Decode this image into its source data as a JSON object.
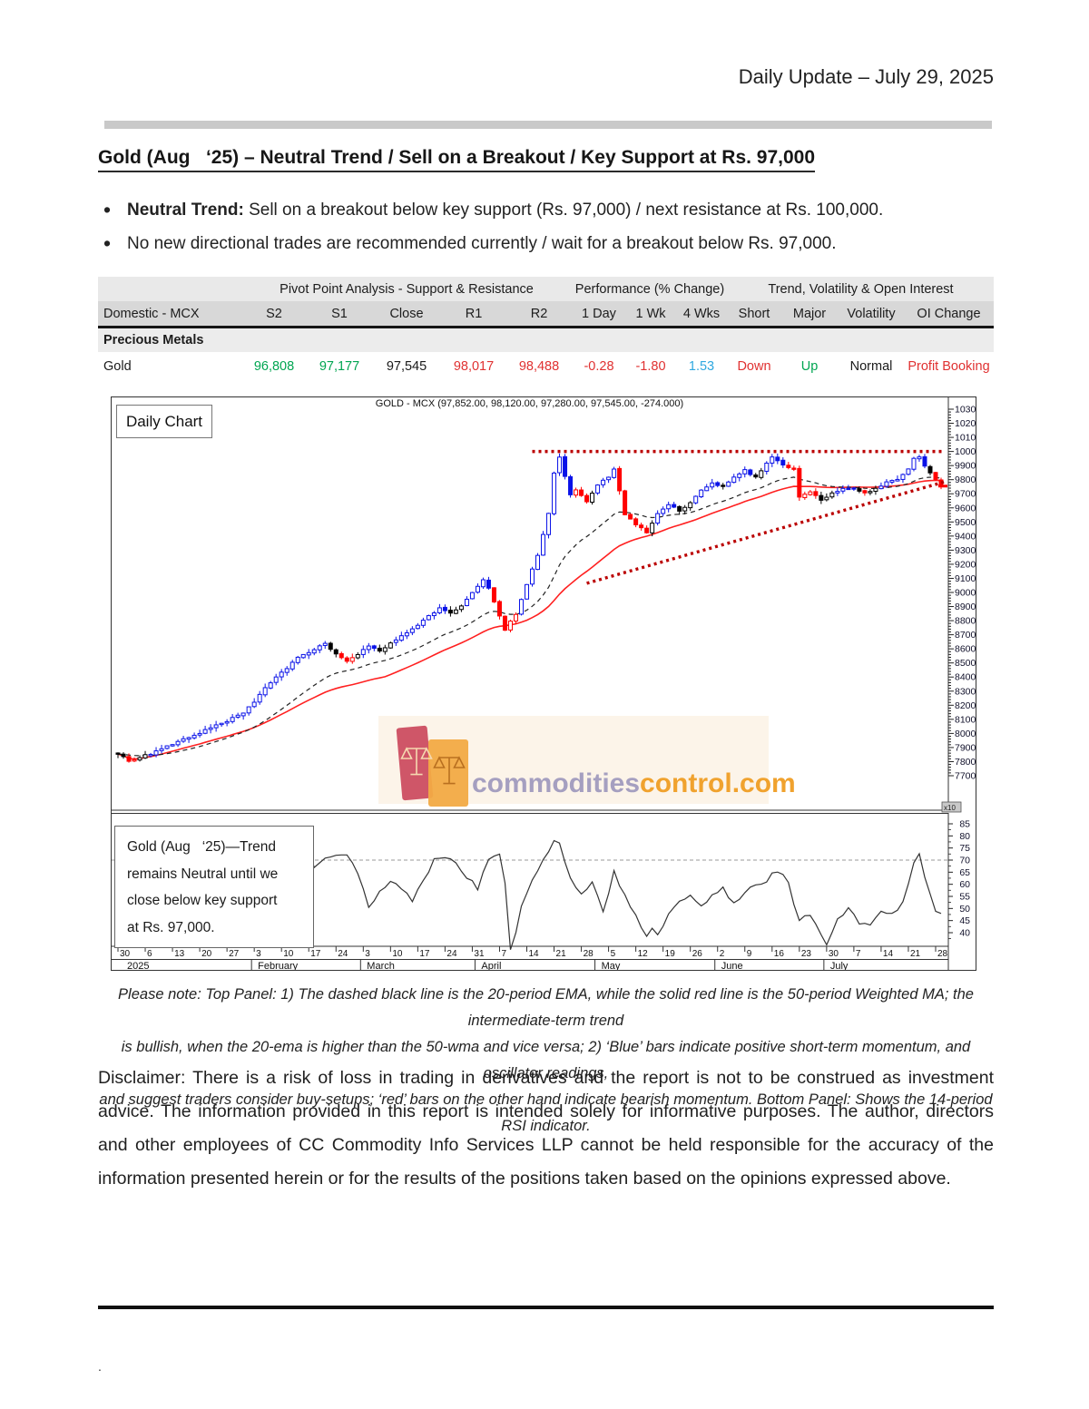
{
  "page": {
    "header_right": "Daily Update – July 29, 2025",
    "title": "Gold (Aug   ‘25) – Neutral Trend / Sell on a Breakout / Key Support at Rs. 97,000",
    "bullets": [
      {
        "lead": "Neutral Trend:",
        "text": " Sell on a breakout below key support (Rs. 97,000) / next resistance at Rs. 100,000."
      },
      {
        "lead": "",
        "text": "No new directional trades are recommended currently / wait for a breakout below Rs. 97,000."
      }
    ],
    "footnote_lines": [
      "Please note: Top Panel: 1) The dashed black line is the 20-period EMA, while the solid red line is the 50-period Weighted MA; the intermediate-term trend",
      "is bullish, when the 20-ema is higher than the 50-wma and vice versa; 2) ‘Blue’  bars indicate positive short-term momentum, and oscillator readings,",
      "and suggest traders consider buy-setups;  ‘red’  bars on the other hand indicate bearish momentum. Bottom Panel: Shows the 14-period RSI indicator."
    ],
    "disclaimer": "Disclaimer: There is a risk of loss in trading in derivatives and the report is not to be construed as investment advice. The information provided in this report is intended solely for informative purposes. The author, directors and other employees of CC Commodity Info Services LLP cannot be held responsible for the accuracy of the information presented herein or for the results of the positions taken based on the opinions expressed above.",
    "trailing_mark": "."
  },
  "table": {
    "group_headers": [
      "",
      "Pivot Point Analysis - Support & Resistance",
      "Performance (% Change)",
      "Trend, Volatility & Open Interest"
    ],
    "columns": [
      "Domestic - MCX",
      "S2",
      "S1",
      "Close",
      "R1",
      "R2",
      "1 Day",
      "1 Wk",
      "4 Wks",
      "Short",
      "Major",
      "Volatility",
      "OI Change"
    ],
    "section_row": "Precious Metals",
    "rows": [
      {
        "cells": [
          "Gold",
          "96,808",
          "97,177",
          "97,545",
          "98,017",
          "98,488",
          "-0.28",
          "-1.80",
          "1.53",
          "Down",
          "Up",
          "Normal",
          "Profit Booking"
        ],
        "colors": [
          "black",
          "green",
          "green",
          "black",
          "red",
          "red",
          "red",
          "red",
          "blue",
          "red",
          "green",
          "black",
          "red"
        ]
      }
    ]
  },
  "chart_data": {
    "type": "candlestick",
    "title": "GOLD - MCX (97,852.00, 98,120.00, 97,280.00, 97,545.00, -274.000)",
    "panel_label": "Daily Chart",
    "annotation": "Gold (Aug   ‘25)—Trend\nremains Neutral until we\nclose below key support\nat Rs. 97,000.",
    "watermark": {
      "gray_text": "commodities",
      "orange_text": "control.com"
    },
    "scale_tag": "x10",
    "y_axis": {
      "min": 7700,
      "max": 10300,
      "step": 100
    },
    "rsi_axis": {
      "min": 40,
      "max": 85,
      "step": 5,
      "overbought_line": 70
    },
    "days_total": 152,
    "last_close": 9754.5,
    "price_keyframes": [
      [
        0,
        7860
      ],
      [
        2,
        7806
      ],
      [
        4,
        7830
      ],
      [
        6,
        7856
      ],
      [
        9,
        7906
      ],
      [
        12,
        7956
      ],
      [
        15,
        8006
      ],
      [
        18,
        8056
      ],
      [
        20,
        8086
      ],
      [
        23,
        8148
      ],
      [
        25,
        8220
      ],
      [
        27,
        8320
      ],
      [
        29,
        8396
      ],
      [
        31,
        8460
      ],
      [
        33,
        8540
      ],
      [
        36,
        8600
      ],
      [
        38,
        8636
      ],
      [
        40,
        8560
      ],
      [
        42,
        8506
      ],
      [
        44,
        8560
      ],
      [
        46,
        8620
      ],
      [
        48,
        8586
      ],
      [
        51,
        8660
      ],
      [
        54,
        8740
      ],
      [
        57,
        8830
      ],
      [
        59,
        8886
      ],
      [
        61,
        8856
      ],
      [
        63,
        8910
      ],
      [
        65,
        9000
      ],
      [
        67,
        9090
      ],
      [
        68,
        9030
      ],
      [
        69,
        8930
      ],
      [
        71,
        8730
      ],
      [
        73,
        8850
      ],
      [
        75,
        9060
      ],
      [
        77,
        9260
      ],
      [
        79,
        9560
      ],
      [
        80,
        9850
      ],
      [
        81,
        9956
      ],
      [
        82,
        9820
      ],
      [
        83,
        9690
      ],
      [
        84,
        9730
      ],
      [
        86,
        9640
      ],
      [
        88,
        9760
      ],
      [
        90,
        9820
      ],
      [
        91,
        9876
      ],
      [
        93,
        9556
      ],
      [
        95,
        9480
      ],
      [
        97,
        9426
      ],
      [
        99,
        9556
      ],
      [
        101,
        9620
      ],
      [
        103,
        9580
      ],
      [
        105,
        9640
      ],
      [
        107,
        9720
      ],
      [
        109,
        9770
      ],
      [
        111,
        9750
      ],
      [
        113,
        9820
      ],
      [
        115,
        9866
      ],
      [
        117,
        9820
      ],
      [
        119,
        9920
      ],
      [
        120,
        9956
      ],
      [
        122,
        9900
      ],
      [
        124,
        9876
      ],
      [
        125,
        9680
      ],
      [
        127,
        9720
      ],
      [
        129,
        9650
      ],
      [
        131,
        9700
      ],
      [
        133,
        9740
      ],
      [
        135,
        9730
      ],
      [
        137,
        9700
      ],
      [
        139,
        9740
      ],
      [
        141,
        9780
      ],
      [
        143,
        9800
      ],
      [
        145,
        9870
      ],
      [
        146,
        9950
      ],
      [
        147,
        9966
      ],
      [
        148,
        9890
      ],
      [
        149,
        9850
      ],
      [
        150,
        9800
      ],
      [
        151,
        9754.5
      ]
    ],
    "rsi_keyframes": [
      [
        34,
        83
      ],
      [
        36,
        68
      ],
      [
        38,
        72
      ],
      [
        40,
        73
      ],
      [
        42,
        72
      ],
      [
        44,
        64
      ],
      [
        46,
        51
      ],
      [
        48,
        57
      ],
      [
        50,
        61
      ],
      [
        52,
        59
      ],
      [
        54,
        53
      ],
      [
        56,
        62
      ],
      [
        58,
        70
      ],
      [
        60,
        72
      ],
      [
        62,
        70
      ],
      [
        64,
        63
      ],
      [
        66,
        58
      ],
      [
        68,
        71
      ],
      [
        70,
        73
      ],
      [
        71,
        60
      ],
      [
        72,
        34
      ],
      [
        73,
        40
      ],
      [
        74,
        52
      ],
      [
        76,
        62
      ],
      [
        78,
        71
      ],
      [
        80,
        77
      ],
      [
        81,
        78
      ],
      [
        83,
        62
      ],
      [
        85,
        57
      ],
      [
        87,
        60
      ],
      [
        89,
        48
      ],
      [
        91,
        66
      ],
      [
        93,
        55
      ],
      [
        95,
        48
      ],
      [
        97,
        38
      ],
      [
        98,
        41
      ],
      [
        99,
        38
      ],
      [
        101,
        48
      ],
      [
        103,
        52
      ],
      [
        105,
        55
      ],
      [
        107,
        50
      ],
      [
        109,
        55
      ],
      [
        111,
        58
      ],
      [
        113,
        52
      ],
      [
        115,
        57
      ],
      [
        117,
        60
      ],
      [
        119,
        62
      ],
      [
        121,
        66
      ],
      [
        123,
        60
      ],
      [
        125,
        44
      ],
      [
        127,
        48
      ],
      [
        129,
        40
      ],
      [
        130,
        35
      ],
      [
        132,
        46
      ],
      [
        134,
        50
      ],
      [
        136,
        44
      ],
      [
        138,
        42
      ],
      [
        140,
        50
      ],
      [
        142,
        48
      ],
      [
        144,
        52
      ],
      [
        146,
        68
      ],
      [
        147,
        72
      ],
      [
        148,
        62
      ],
      [
        149,
        55
      ],
      [
        150,
        50
      ],
      [
        151,
        47
      ]
    ],
    "rsi_visible_from_day": 34,
    "x_ticks": [
      [
        0,
        "30"
      ],
      [
        5,
        "6"
      ],
      [
        10,
        "13"
      ],
      [
        15,
        "20"
      ],
      [
        20,
        "27"
      ],
      [
        25,
        "3"
      ],
      [
        30,
        "10"
      ],
      [
        35,
        "17"
      ],
      [
        40,
        "24"
      ],
      [
        45,
        "3"
      ],
      [
        50,
        "10"
      ],
      [
        55,
        "17"
      ],
      [
        60,
        "24"
      ],
      [
        65,
        "31"
      ],
      [
        70,
        "7"
      ],
      [
        75,
        "14"
      ],
      [
        80,
        "21"
      ],
      [
        85,
        "28"
      ],
      [
        90,
        "5"
      ],
      [
        95,
        "12"
      ],
      [
        100,
        "19"
      ],
      [
        105,
        "26"
      ],
      [
        110,
        "2"
      ],
      [
        115,
        "9"
      ],
      [
        120,
        "16"
      ],
      [
        125,
        "23"
      ],
      [
        130,
        "30"
      ],
      [
        135,
        "7"
      ],
      [
        140,
        "14"
      ],
      [
        145,
        "21"
      ],
      [
        150,
        "28"
      ]
    ],
    "month_labels": [
      [
        1,
        "2025"
      ],
      [
        25,
        "February"
      ],
      [
        45,
        "March"
      ],
      [
        66,
        "April"
      ],
      [
        88,
        "May"
      ],
      [
        110,
        "June"
      ],
      [
        130,
        "July"
      ]
    ],
    "month_separators": [
      24.5,
      44.5,
      65.5,
      87.5,
      109.5,
      129.5
    ],
    "trendlines": [
      {
        "kind": "resistance",
        "from_day": 76,
        "to_day": 152,
        "from_price": 10000,
        "to_price": 10000
      },
      {
        "kind": "support",
        "from_day": 86,
        "to_day": 152,
        "from_price": 9065,
        "to_price": 9785
      }
    ],
    "indicators": {
      "ema_period": 20,
      "wma_period": 50,
      "rsi_period": 14
    },
    "colors": {
      "up_momentum": "#0a12e8",
      "down_momentum": "#ff0000",
      "neutral": "#000000",
      "ema": "#222222",
      "wma": "#ff2020",
      "trendline": "#bb0000",
      "rsi": "#333333",
      "table_green": "#00a551",
      "table_red": "#e03131",
      "table_blue": "#2fa8e0",
      "watermark_gray": "#a59fc0",
      "watermark_orange": "#f0a22e"
    }
  }
}
